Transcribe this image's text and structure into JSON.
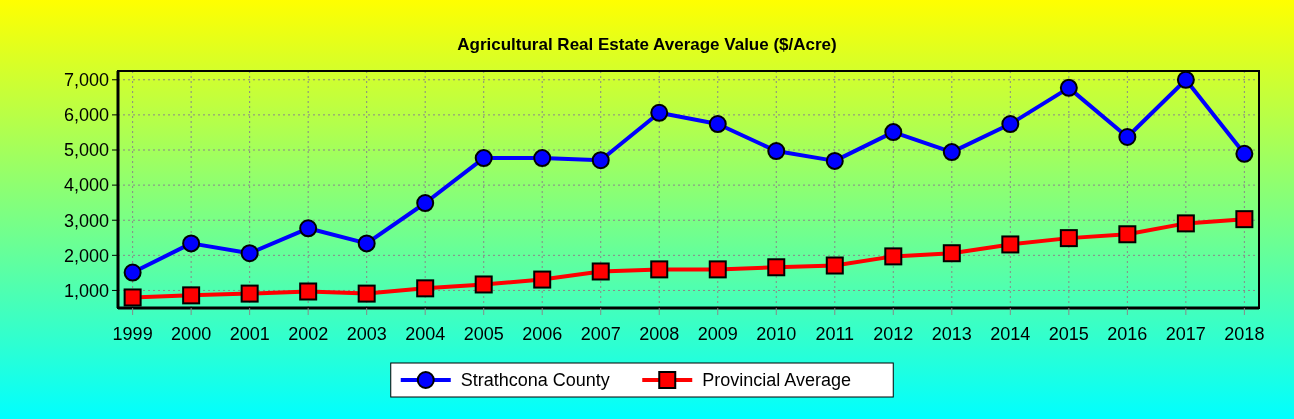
{
  "chart_data": {
    "type": "line",
    "title": "Agricultural Real Estate Average Value ($/Acre)",
    "categories": [
      "1999",
      "2000",
      "2001",
      "2002",
      "2003",
      "2004",
      "2005",
      "2006",
      "2007",
      "2008",
      "2009",
      "2010",
      "2011",
      "2012",
      "2013",
      "2014",
      "2015",
      "2016",
      "2017",
      "2018"
    ],
    "series": [
      {
        "name": "Strathcona County",
        "color": "#0000ff",
        "marker": "circle",
        "values": [
          1510,
          2340,
          2060,
          2770,
          2340,
          3490,
          4770,
          4770,
          4710,
          6060,
          5740,
          4970,
          4690,
          5510,
          4940,
          5740,
          6770,
          5370,
          7000,
          4890
        ]
      },
      {
        "name": "Provincial Average",
        "color": "#ff0000",
        "marker": "square",
        "values": [
          800,
          860,
          910,
          970,
          910,
          1060,
          1170,
          1310,
          1540,
          1600,
          1600,
          1660,
          1710,
          1970,
          2060,
          2310,
          2490,
          2600,
          2910,
          3030
        ]
      }
    ],
    "ylim": [
      500,
      7250
    ],
    "yticks": [
      {
        "value": 1000,
        "label": "1,000"
      },
      {
        "value": 2000,
        "label": "2,000"
      },
      {
        "value": 3000,
        "label": "3,000"
      },
      {
        "value": 4000,
        "label": "4,000"
      },
      {
        "value": 5000,
        "label": "5,000"
      },
      {
        "value": 6000,
        "label": "6,000"
      },
      {
        "value": 7000,
        "label": "7,000"
      }
    ],
    "grid": true,
    "legend": "bottom",
    "line_style": "solid"
  }
}
